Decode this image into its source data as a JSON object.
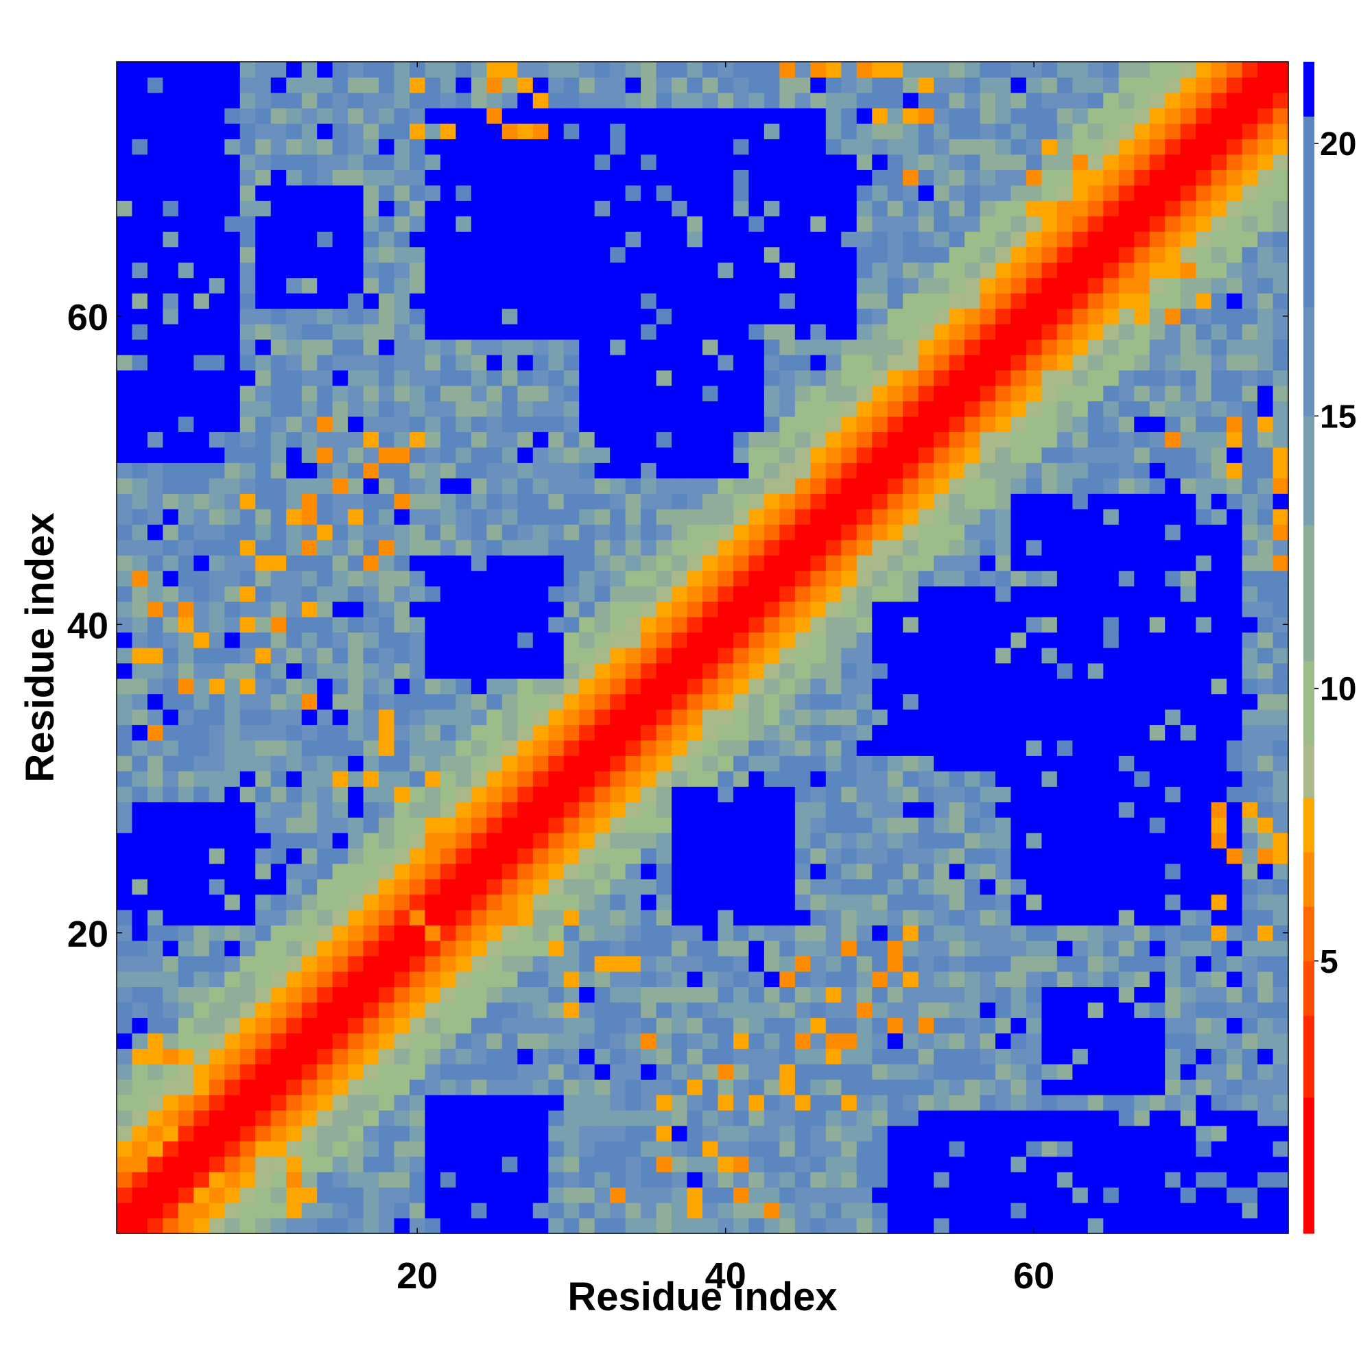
{
  "chart_data": {
    "type": "heatmap",
    "title": "",
    "xlabel": "Residue index",
    "ylabel": "Residue index",
    "n_residues": 76,
    "xlim": [
      1,
      76
    ],
    "ylim": [
      1,
      76
    ],
    "x_ticks": [
      20,
      40,
      60
    ],
    "y_ticks": [
      20,
      40,
      60
    ],
    "value_description": "Pairwise residue distance (contact map), symmetric about the diagonal",
    "colorbar": {
      "range": [
        0,
        21.5
      ],
      "ticks": [
        5,
        10,
        15,
        20
      ],
      "levels": [
        {
          "max": 2.5,
          "color": "#ff0000"
        },
        {
          "max": 4.0,
          "color": "#ff2a00"
        },
        {
          "max": 5.0,
          "color": "#ff4d00"
        },
        {
          "max": 6.0,
          "color": "#ff6a00"
        },
        {
          "max": 7.0,
          "color": "#ff8c00"
        },
        {
          "max": 8.0,
          "color": "#ffa500"
        },
        {
          "max": 9.0,
          "color": "#a9b98a"
        },
        {
          "max": 10.5,
          "color": "#9cbd8a"
        },
        {
          "max": 13.0,
          "color": "#8fad98"
        },
        {
          "max": 15.0,
          "color": "#78a0ae"
        },
        {
          "max": 17.0,
          "color": "#6a90be"
        },
        {
          "max": 20.5,
          "color": "#5b86bf"
        },
        {
          "max": 99,
          "color": "#0000ff"
        }
      ]
    },
    "far_regions": [
      {
        "x": [
          1,
          8
        ],
        "y": [
          53,
          76
        ],
        "d": 22
      },
      {
        "x": [
          21,
          48
        ],
        "y": [
          59,
          70
        ],
        "d": 22
      },
      {
        "x": [
          32,
          41
        ],
        "y": [
          50,
          61
        ],
        "d": 22
      },
      {
        "x": [
          21,
          29
        ],
        "y": [
          37,
          44
        ],
        "d": 22
      },
      {
        "x": [
          2,
          9
        ],
        "y": [
          21,
          28
        ],
        "d": 22
      },
      {
        "x": [
          51,
          76
        ],
        "y": [
          1,
          7
        ],
        "d": 22
      },
      {
        "x": [
          59,
          73
        ],
        "y": [
          21,
          46
        ],
        "d": 22
      },
      {
        "x": [
          53,
          60
        ],
        "y": [
          31,
          42
        ],
        "d": 22
      },
      {
        "x": [
          22,
          26
        ],
        "y": [
          1,
          9
        ],
        "d": 22
      },
      {
        "x": [
          37,
          43
        ],
        "y": [
          21,
          27
        ],
        "d": 22
      },
      {
        "x": [
          61,
          68
        ],
        "y": [
          10,
          16
        ],
        "d": 22
      }
    ],
    "mid_contacts": [
      [
        2,
        43
      ],
      [
        3,
        41
      ],
      [
        3,
        38
      ],
      [
        5,
        40
      ],
      [
        6,
        39
      ],
      [
        9,
        42
      ],
      [
        9,
        45
      ],
      [
        11,
        44
      ],
      [
        13,
        45
      ],
      [
        15,
        49
      ],
      [
        17,
        50
      ],
      [
        18,
        51
      ],
      [
        19,
        51
      ],
      [
        16,
        47
      ],
      [
        14,
        46
      ],
      [
        13,
        48
      ],
      [
        12,
        47
      ],
      [
        10,
        38
      ],
      [
        7,
        36
      ],
      [
        11,
        40
      ],
      [
        13,
        35
      ],
      [
        15,
        30
      ],
      [
        17,
        30
      ],
      [
        19,
        29
      ],
      [
        20,
        21
      ],
      [
        26,
        21
      ],
      [
        27,
        21
      ],
      [
        30,
        21
      ],
      [
        32,
        18
      ],
      [
        33,
        18
      ],
      [
        34,
        18
      ],
      [
        30,
        17
      ],
      [
        44,
        17
      ],
      [
        45,
        18
      ],
      [
        48,
        19
      ],
      [
        52,
        20
      ],
      [
        52,
        17
      ],
      [
        53,
        14
      ],
      [
        51,
        14
      ],
      [
        47,
        13
      ],
      [
        41,
        13
      ],
      [
        40,
        11
      ],
      [
        36,
        9
      ],
      [
        40,
        9
      ],
      [
        44,
        10
      ],
      [
        45,
        9
      ],
      [
        48,
        9
      ],
      [
        39,
        6
      ],
      [
        36,
        5
      ],
      [
        41,
        5
      ],
      [
        33,
        3
      ],
      [
        38,
        2
      ],
      [
        13,
        3
      ],
      [
        12,
        4
      ],
      [
        2,
        12
      ],
      [
        3,
        12
      ],
      [
        5,
        12
      ],
      [
        6,
        10
      ],
      [
        4,
        7
      ],
      [
        3,
        6
      ],
      [
        1,
        6
      ],
      [
        2,
        5
      ],
      [
        22,
        72
      ],
      [
        26,
        72
      ],
      [
        28,
        72
      ],
      [
        25,
        75
      ],
      [
        27,
        75
      ],
      [
        28,
        74
      ],
      [
        26,
        76
      ],
      [
        50,
        76
      ],
      [
        51,
        76
      ],
      [
        53,
        75
      ],
      [
        53,
        73
      ],
      [
        50,
        73
      ],
      [
        47,
        76
      ],
      [
        44,
        76
      ],
      [
        60,
        67
      ],
      [
        61,
        67
      ],
      [
        62,
        67
      ],
      [
        60,
        69
      ],
      [
        70,
        63
      ],
      [
        71,
        61
      ],
      [
        69,
        63
      ],
      [
        73,
        52
      ],
      [
        69,
        52
      ],
      [
        76,
        49
      ],
      [
        76,
        46
      ],
      [
        72,
        27
      ],
      [
        73,
        25
      ],
      [
        75,
        27
      ],
      [
        76,
        25
      ],
      [
        72,
        20
      ],
      [
        75,
        20
      ]
    ]
  }
}
